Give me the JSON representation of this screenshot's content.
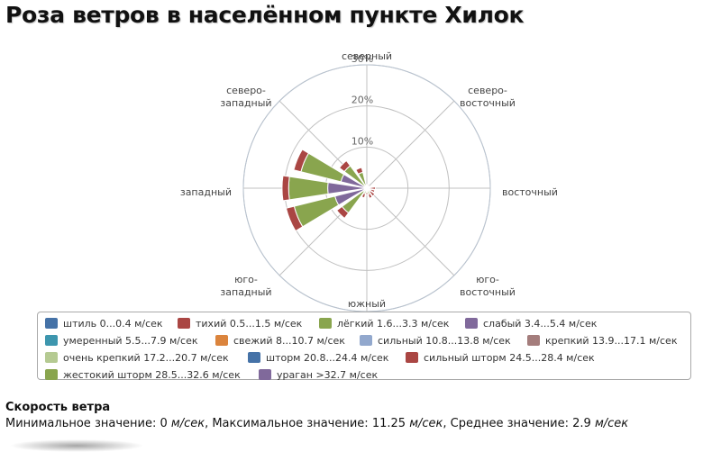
{
  "title": "Роза ветров в населённом пункте Хилок",
  "chart_data": {
    "type": "polar-stacked-bar",
    "directions": [
      "северный",
      "северо-восточный",
      "восточный",
      "юго-восточный",
      "южный",
      "юго-западный",
      "западный",
      "северо-западный"
    ],
    "direction_labels": [
      [
        "северный"
      ],
      [
        "северо-",
        "восточный"
      ],
      [
        "восточный"
      ],
      [
        "юго-",
        "восточный"
      ],
      [
        "южный"
      ],
      [
        "юго-",
        "западный"
      ],
      [
        "западный"
      ],
      [
        "северо-",
        "западный"
      ]
    ],
    "sector_angles_deg": [
      0,
      45,
      90,
      135,
      180,
      225,
      270,
      315
    ],
    "radial_axis": {
      "max": 30,
      "ticks": [
        10,
        20,
        30
      ],
      "tick_labels": [
        "10%",
        "20%",
        "30%"
      ]
    },
    "sectors": [
      {
        "angle": 0,
        "values": {
          "lyogkiy": 0.5,
          "tihiy": 0.4
        }
      },
      {
        "angle": 22.5,
        "values": {
          "lyogkiy": 0.4,
          "tihiy": 0.6
        }
      },
      {
        "angle": 45,
        "values": {
          "tihiy": 0.7
        }
      },
      {
        "angle": 67.5,
        "values": {
          "tihiy": 0.8
        }
      },
      {
        "angle": 90,
        "values": {
          "lyogkiy": 0.6,
          "tihiy": 1.5
        }
      },
      {
        "angle": 112.5,
        "values": {
          "lyogkiy": 1.0,
          "tihiy": 1.0
        }
      },
      {
        "angle": 135,
        "values": {
          "lyogkiy": 1.0,
          "tihiy": 1.4
        }
      },
      {
        "angle": 157.5,
        "values": {
          "lyogkiy": 1.5,
          "tihiy": 1.0
        }
      },
      {
        "angle": 180,
        "values": {
          "lyogkiy": 1.0,
          "tihiy": 0.6
        }
      },
      {
        "angle": 202.5,
        "values": {
          "lyogkiy": 1.4,
          "tihiy": 1.0
        }
      },
      {
        "angle": 225,
        "values": {
          "slabyi": 1.0,
          "lyogkiy": 6.5,
          "tihiy": 1.6
        }
      },
      {
        "angle": 247.5,
        "values": {
          "slabyi": 8.0,
          "lyogkiy": 10.2,
          "tihiy": 2.0
        }
      },
      {
        "angle": 270,
        "values": {
          "slabyi": 9.5,
          "lyogkiy": 9.5,
          "tihiy": 1.6
        }
      },
      {
        "angle": 292.5,
        "values": {
          "slabyi": 6.5,
          "lyogkiy": 10.0,
          "tihiy": 1.8
        }
      },
      {
        "angle": 315,
        "values": {
          "lyogkiy": 6.8,
          "tihiy": 1.5
        }
      },
      {
        "angle": 337.5,
        "values": {
          "lyogkiy": 4.0,
          "tihiy": 1.2
        }
      }
    ],
    "stack_order": [
      "shtil",
      "slabyi",
      "lyogkiy",
      "tihiy"
    ]
  },
  "legend": [
    {
      "key": "shtil",
      "label": "штиль 0...0.4 м/сек",
      "color": "#4572a7"
    },
    {
      "key": "tihiy",
      "label": "тихий 0.5...1.5 м/сек",
      "color": "#aa4643"
    },
    {
      "key": "lyogkiy",
      "label": "лёгкий 1.6...3.3 м/сек",
      "color": "#89a54e"
    },
    {
      "key": "slabyi",
      "label": "слабый 3.4...5.4 м/сек",
      "color": "#80699b"
    },
    {
      "key": "umerennyi",
      "label": "умеренный 5.5...7.9 м/сек",
      "color": "#3d96ae"
    },
    {
      "key": "svezhiy",
      "label": "свежий 8...10.7 м/сек",
      "color": "#db843d"
    },
    {
      "key": "silnyi",
      "label": "сильный 10.8...13.8 м/сек",
      "color": "#92a8cd"
    },
    {
      "key": "krepkiy",
      "label": "крепкий 13.9...17.1 м/сек",
      "color": "#a47d7c"
    },
    {
      "key": "ochen",
      "label": "очень крепкий 17.2...20.7 м/сек",
      "color": "#b5ca92"
    },
    {
      "key": "shtorm",
      "label": "шторм 20.8...24.4 м/сек",
      "color": "#4572a7"
    },
    {
      "key": "silnyi_shtorm",
      "label": "сильный шторм 24.5...28.4 м/сек",
      "color": "#aa4643"
    },
    {
      "key": "zhestokiy",
      "label": "жестокий шторм 28.5...32.6 м/сек",
      "color": "#89a54e"
    },
    {
      "key": "uragan",
      "label": "ураган >32.7 м/сек",
      "color": "#80699b"
    }
  ],
  "caption": {
    "title": "Скорость ветра",
    "min_label": "Минимальное значение: ",
    "min_value": "0",
    "max_label": ", Максимальное значение: ",
    "max_value": "11.25",
    "avg_label": ", Среднее значение: ",
    "avg_value": "2.9",
    "unit": "м/сек"
  }
}
